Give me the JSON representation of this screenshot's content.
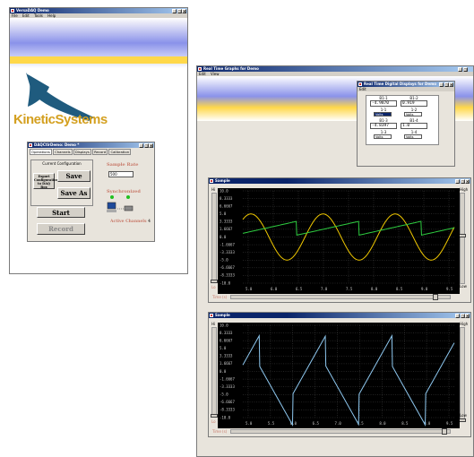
{
  "main_window": {
    "title": "VersaDAQ Demo",
    "menu": [
      "File",
      "Edit",
      "Tools",
      "Help"
    ],
    "brand": "KineticSystems"
  },
  "config_window": {
    "title": "DAQCtlrDemo: Demo *",
    "tabs": [
      "Operations",
      "Channels",
      "Displays",
      "Record",
      "Calibration"
    ],
    "current_config_label": "Current Configuration",
    "export_label": "Export Configuration to DAQ Box",
    "save": "Save",
    "save_as": "Save As",
    "start": "Start",
    "record": "Record",
    "sample_rate_label": "Sample Rate",
    "sample_rate_value": "500",
    "synchronized_label": "Synchronized",
    "active_channels_label": "Active Channels",
    "active_channels_value": "4"
  },
  "graphs_window": {
    "title": "Real Time Graphs for Demo",
    "menu": [
      "Edit",
      "View"
    ]
  },
  "digital_window": {
    "title": "Real Time Digital Displays for Demo",
    "menu": [
      "Edit"
    ],
    "channels": [
      {
        "name": "B1-1",
        "value": "-4.9870",
        "unit": "Volts"
      },
      {
        "name": "B1-2",
        "value": "0.919",
        "unit": "Volts"
      },
      {
        "name": "1-1",
        "value": "",
        "unit": "Volts"
      },
      {
        "name": "1-2",
        "value": "",
        "unit": "Volts"
      },
      {
        "name": "B1-3",
        "value": "",
        "unit": ""
      },
      {
        "name": "B1-4",
        "value": "",
        "unit": ""
      },
      {
        "name": "",
        "value": "-4.8397",
        "unit": ""
      },
      {
        "name": "",
        "value": "1.0",
        "unit": ""
      },
      {
        "name": "1-3",
        "value": "",
        "unit": "Volts"
      },
      {
        "name": "1-4",
        "value": "",
        "unit": "Volts"
      }
    ]
  },
  "sample_plot": {
    "title": "Sample",
    "hi_label": "Hi",
    "high_label": "High",
    "low_label": "Low",
    "lo_label": "Lo",
    "time_label": "Time (s)",
    "y_ticks": [
      "10.0",
      "8.3333",
      "6.6667",
      "5.0",
      "3.3333",
      "1.6667",
      "0.0",
      "-1.6667",
      "-3.3333",
      "-5.0",
      "-6.6667",
      "-8.3333",
      "-10.0"
    ],
    "x_ticks": [
      "5.0",
      "6.0",
      "6.5",
      "7.0",
      "7.5",
      "8.0",
      "8.5",
      "9.0",
      "9.5"
    ]
  },
  "sample2_plot": {
    "title": "Sample",
    "hi_label": "Hi",
    "high_label": "High",
    "low_label": "Low",
    "lo_label": "Lo",
    "time_label": "Time (s)",
    "y_ticks": [
      "10.0",
      "8.3333",
      "6.6667",
      "5.0",
      "3.3333",
      "1.6667",
      "0.0",
      "-1.6667",
      "-3.3333",
      "-5.0",
      "-6.6667",
      "-8.3333",
      "-10.0"
    ],
    "x_ticks": [
      "5.0",
      "5.5",
      "6.0",
      "6.5",
      "7.0",
      "7.5",
      "8.0",
      "8.5",
      "9.0",
      "9.5"
    ]
  },
  "colors": {
    "sine": "#f0c800",
    "sawtooth": "#2ecc40",
    "triangle": "#8ec8f0",
    "plot_bg": "#000000",
    "grid": "#555555",
    "brand": "#1f5b7e"
  }
}
